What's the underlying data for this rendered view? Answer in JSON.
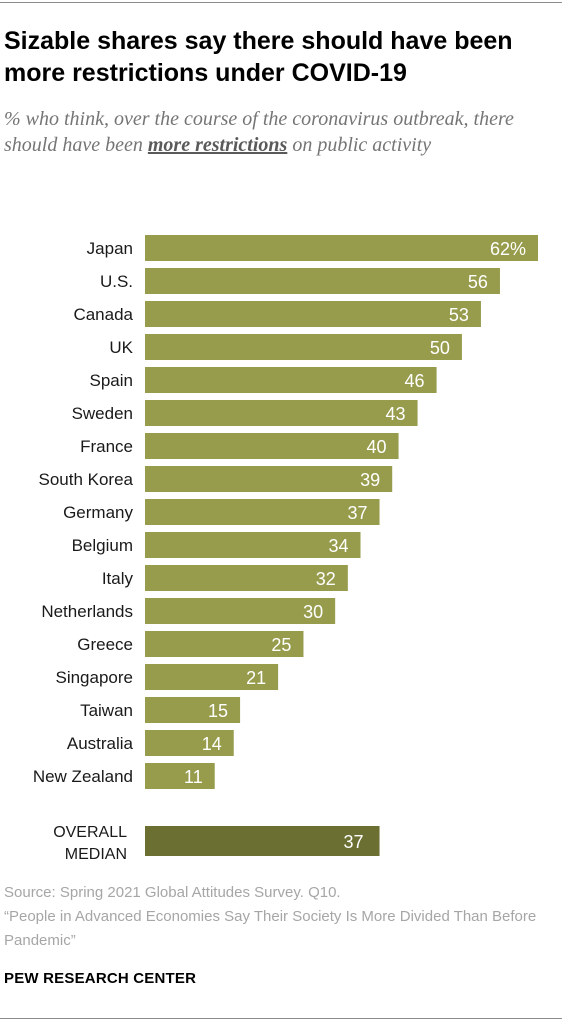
{
  "title": "Sizable shares say there should have been more restrictions under COVID-19",
  "subtitle_before": "% who think, over the course of the coronavirus outbreak, there should have been ",
  "subtitle_emphasis": "more restrictions",
  "subtitle_after": " on public activity",
  "source": "Source: Spring 2021 Global Attitudes Survey. Q10.",
  "report_title": "“People in Advanced Economies Say Their Society Is More Divided Than Before Pandemic”",
  "brand": "PEW RESEARCH CENTER",
  "colors": {
    "bar": "#979c4c",
    "median_bar": "#6b7032",
    "value_label": "#ffffff",
    "category_label": "#1a1a1a"
  },
  "chart_data": {
    "type": "bar",
    "orientation": "horizontal",
    "categories": [
      "Japan",
      "U.S.",
      "Canada",
      "UK",
      "Spain",
      "Sweden",
      "France",
      "South Korea",
      "Germany",
      "Belgium",
      "Italy",
      "Netherlands",
      "Greece",
      "Singapore",
      "Taiwan",
      "Australia",
      "New Zealand"
    ],
    "values": [
      62,
      56,
      53,
      50,
      46,
      43,
      40,
      39,
      37,
      34,
      32,
      30,
      25,
      21,
      15,
      14,
      11
    ],
    "value_labels": [
      "62%",
      "56",
      "53",
      "50",
      "46",
      "43",
      "40",
      "39",
      "37",
      "34",
      "32",
      "30",
      "25",
      "21",
      "15",
      "14",
      "11"
    ],
    "summary": {
      "label_lines": [
        "OVERALL",
        "MEDIAN"
      ],
      "value": 37,
      "value_label": "37"
    },
    "xlim": [
      0,
      62
    ],
    "grid": false,
    "legend": "none"
  }
}
